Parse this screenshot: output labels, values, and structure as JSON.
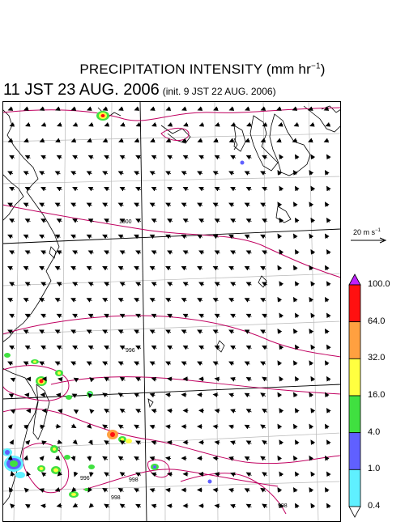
{
  "header": {
    "title": "PRECIPITATION INTENSITY (mm hr",
    "title_sup": "−1",
    "title_close": ")",
    "subtitle": "11 JST 23 AUG. 2006",
    "init_text": "(init. 9 JST 22 AUG. 2006)"
  },
  "reference_vector": {
    "label": "20 m s",
    "label_sup": "−1"
  },
  "colorbar": {
    "unit": "mm hr-1",
    "levels": [
      "0.4",
      "1.0",
      "4.0",
      "16.0",
      "32.0",
      "64.0",
      "100.0"
    ],
    "colors": [
      "#5ff0ff",
      "#6060ff",
      "#40e040",
      "#ffff40",
      "#ffa040",
      "#ff1010",
      "#c020ff"
    ],
    "over_color": "#c020ff",
    "under_color": "#ffffff"
  },
  "isobars": {
    "labels": [
      "1000",
      "996",
      "996",
      "996",
      "998",
      "998",
      "998"
    ],
    "color": "#c00060"
  }
}
